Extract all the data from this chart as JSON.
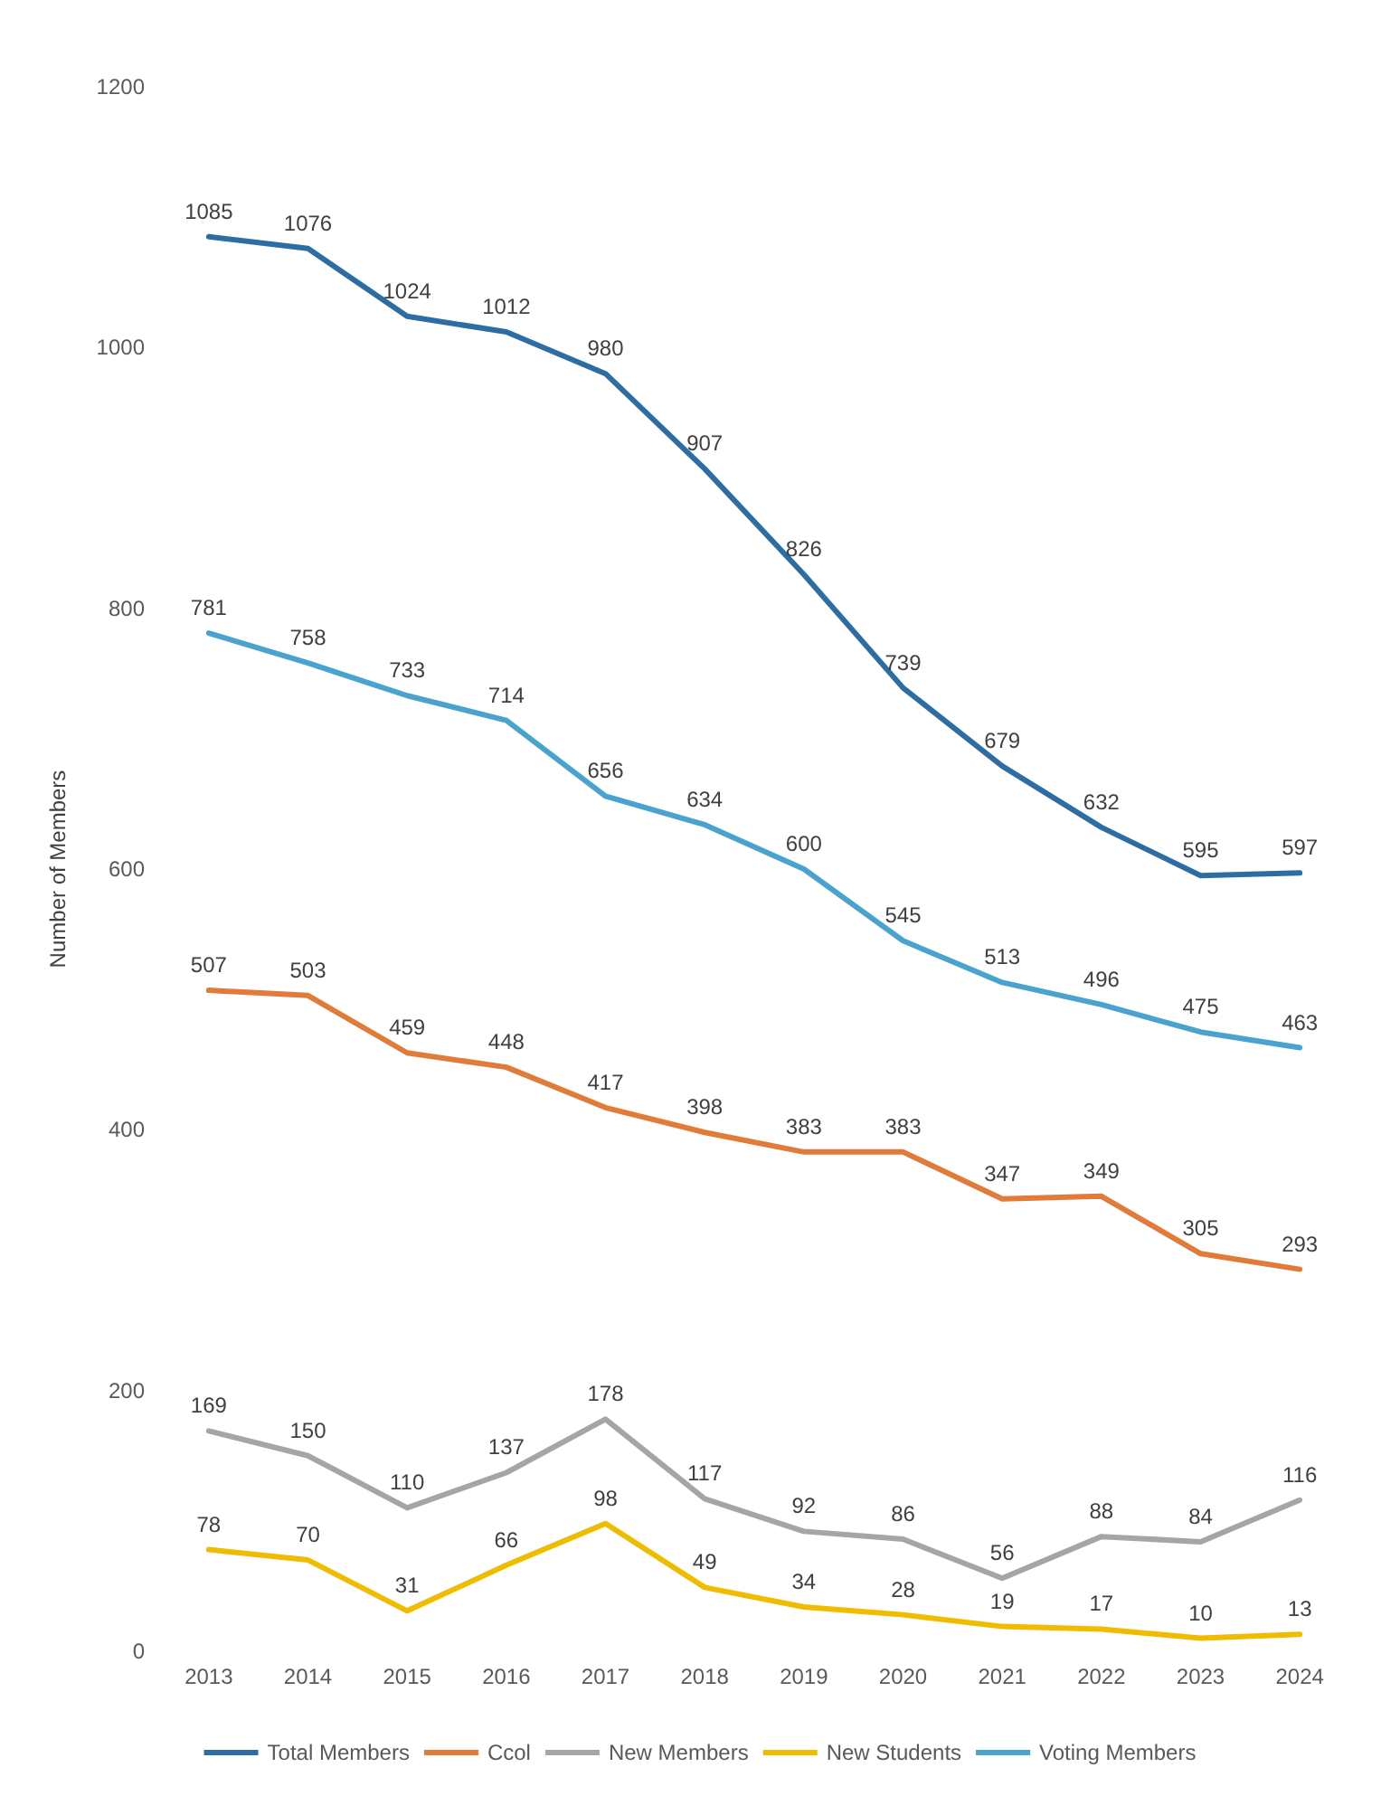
{
  "chart_data": {
    "type": "line",
    "ylabel": "Number of Members",
    "categories": [
      "2013",
      "2014",
      "2015",
      "2016",
      "2017",
      "2018",
      "2019",
      "2020",
      "2021",
      "2022",
      "2023",
      "2024"
    ],
    "series": [
      {
        "name": "Total Members",
        "color": "#2e6da4",
        "values": [
          1085,
          1076,
          1024,
          1012,
          980,
          907,
          826,
          739,
          679,
          632,
          595,
          597
        ]
      },
      {
        "name": "Ccol",
        "color": "#e07b39",
        "values": [
          507,
          503,
          459,
          448,
          417,
          398,
          383,
          383,
          347,
          349,
          305,
          293
        ]
      },
      {
        "name": "New Members",
        "color": "#a5a5a5",
        "values": [
          169,
          150,
          110,
          137,
          178,
          117,
          92,
          86,
          56,
          88,
          84,
          116
        ]
      },
      {
        "name": "New Students",
        "color": "#f0bc00",
        "values": [
          78,
          70,
          31,
          66,
          98,
          49,
          34,
          28,
          19,
          17,
          10,
          13
        ]
      },
      {
        "name": "Voting Members",
        "color": "#4aa3cf",
        "values": [
          781,
          758,
          733,
          714,
          656,
          634,
          600,
          545,
          513,
          496,
          475,
          463
        ]
      }
    ],
    "ylim": [
      0,
      1200
    ],
    "yticks": [
      0,
      200,
      400,
      600,
      800,
      1000,
      1200
    ],
    "grid": false,
    "legend": "bottom",
    "data_labels": true,
    "marker": "none",
    "line_style": "solid"
  }
}
